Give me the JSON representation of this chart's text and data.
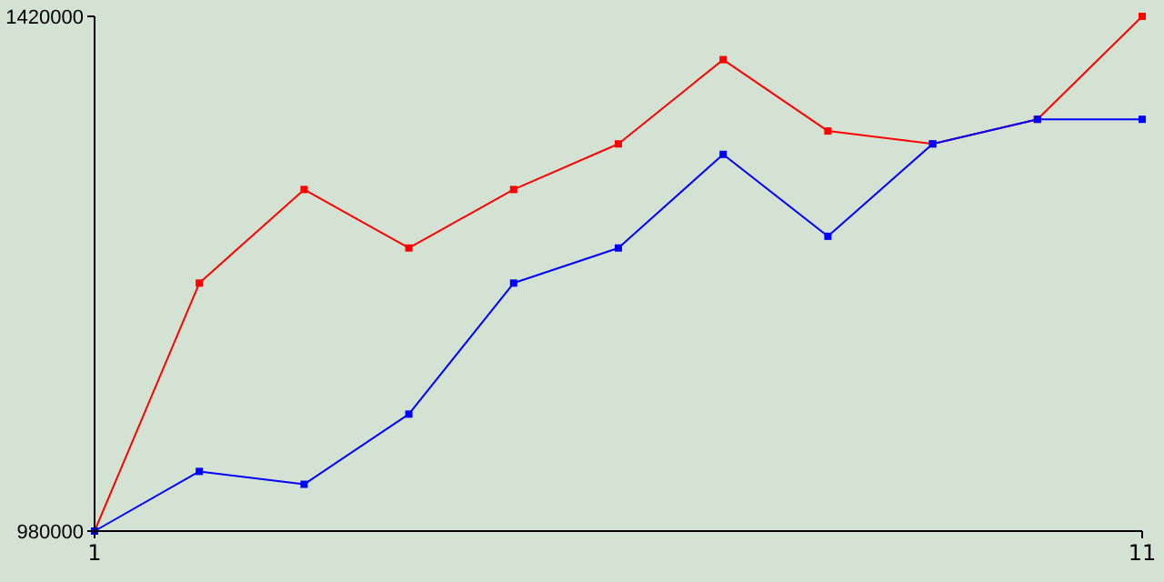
{
  "chart_data": {
    "type": "line",
    "x": [
      1,
      2,
      3,
      4,
      5,
      6,
      7,
      8,
      9,
      10,
      11
    ],
    "xlim": [
      1,
      11
    ],
    "xticks": [
      1,
      11
    ],
    "ylim": [
      980000,
      1420000
    ],
    "yticks": [
      980000,
      1420000
    ],
    "marker": "square",
    "grid": false,
    "series": [
      {
        "color": "#ff0000",
        "values": [
          980000,
          1192000,
          1272000,
          1222000,
          1272000,
          1311000,
          1383000,
          1322000,
          1311000,
          1332000,
          1420000
        ]
      },
      {
        "color": "#0000ff",
        "values": [
          980000,
          1031000,
          1020000,
          1080000,
          1192000,
          1222000,
          1302000,
          1232000,
          1311000,
          1332000,
          1332000
        ]
      }
    ]
  }
}
